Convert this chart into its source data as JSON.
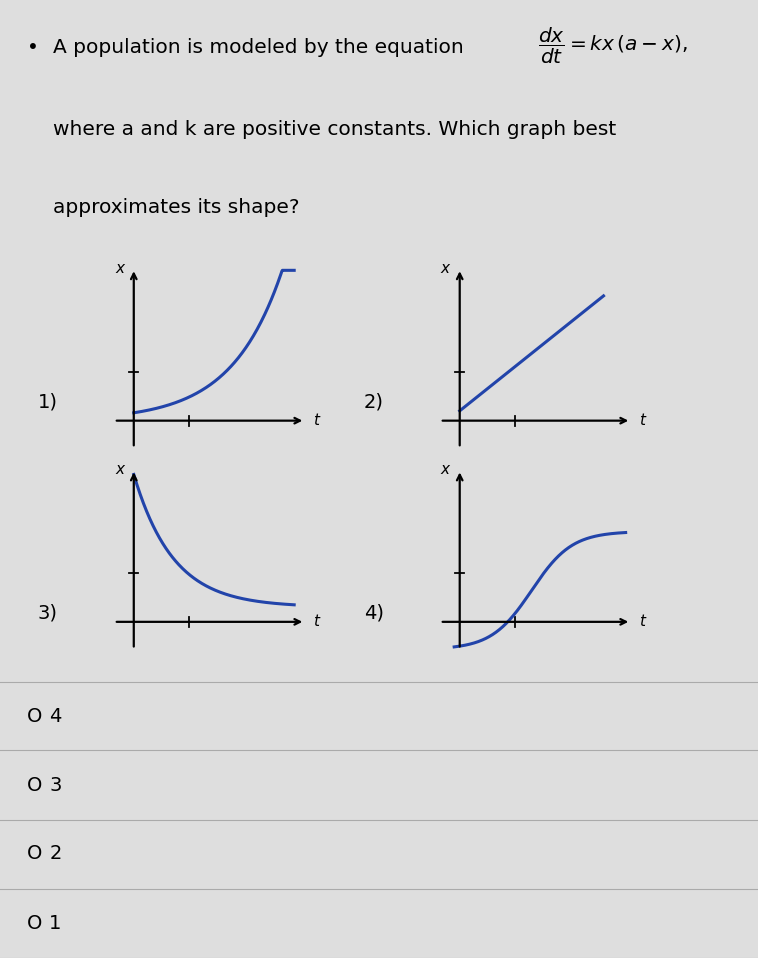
{
  "bg_color": "#dedede",
  "text_color": "#111111",
  "curve_color": "#2244aa",
  "choices": [
    "O 4",
    "O 3",
    "O 2",
    "O 1"
  ],
  "axis_label_x": "x",
  "axis_label_t": "t",
  "graph_fontsize": 11,
  "label_fontsize": 14
}
